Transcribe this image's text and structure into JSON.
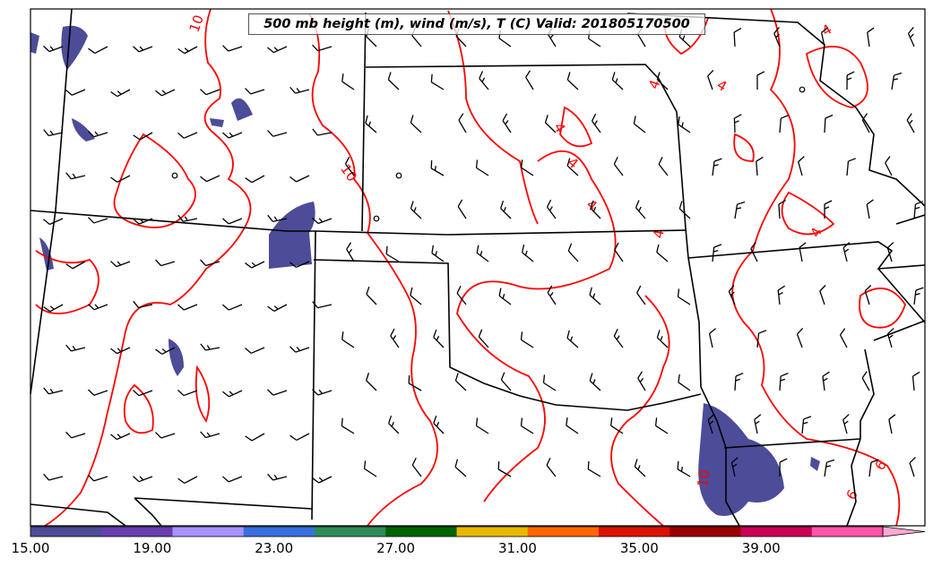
{
  "title": "500 mb height (m), wind (m/s), T (C) Valid: 201805170500",
  "colorbar": {
    "colors": [
      "#4c4c99",
      "#6a3db0",
      "#a892ff",
      "#3a6fe0",
      "#2e8b57",
      "#006400",
      "#e8b800",
      "#ff6600",
      "#dd1100",
      "#990000",
      "#cc0055",
      "#ff55aa",
      "#ffaad4"
    ],
    "tick_labels": [
      "15.00",
      "19.00",
      "23.00",
      "27.00",
      "31.00",
      "35.00",
      "39.00"
    ],
    "range": [
      15,
      43
    ]
  },
  "contours": {
    "color": "#ff0000",
    "labels": [
      "10",
      "10",
      "4",
      "4",
      "4",
      "4",
      "4",
      "4",
      "4",
      "4",
      "10",
      "6",
      "6"
    ]
  },
  "overlay_color": "#4c4c99",
  "boundary_color": "#000000"
}
